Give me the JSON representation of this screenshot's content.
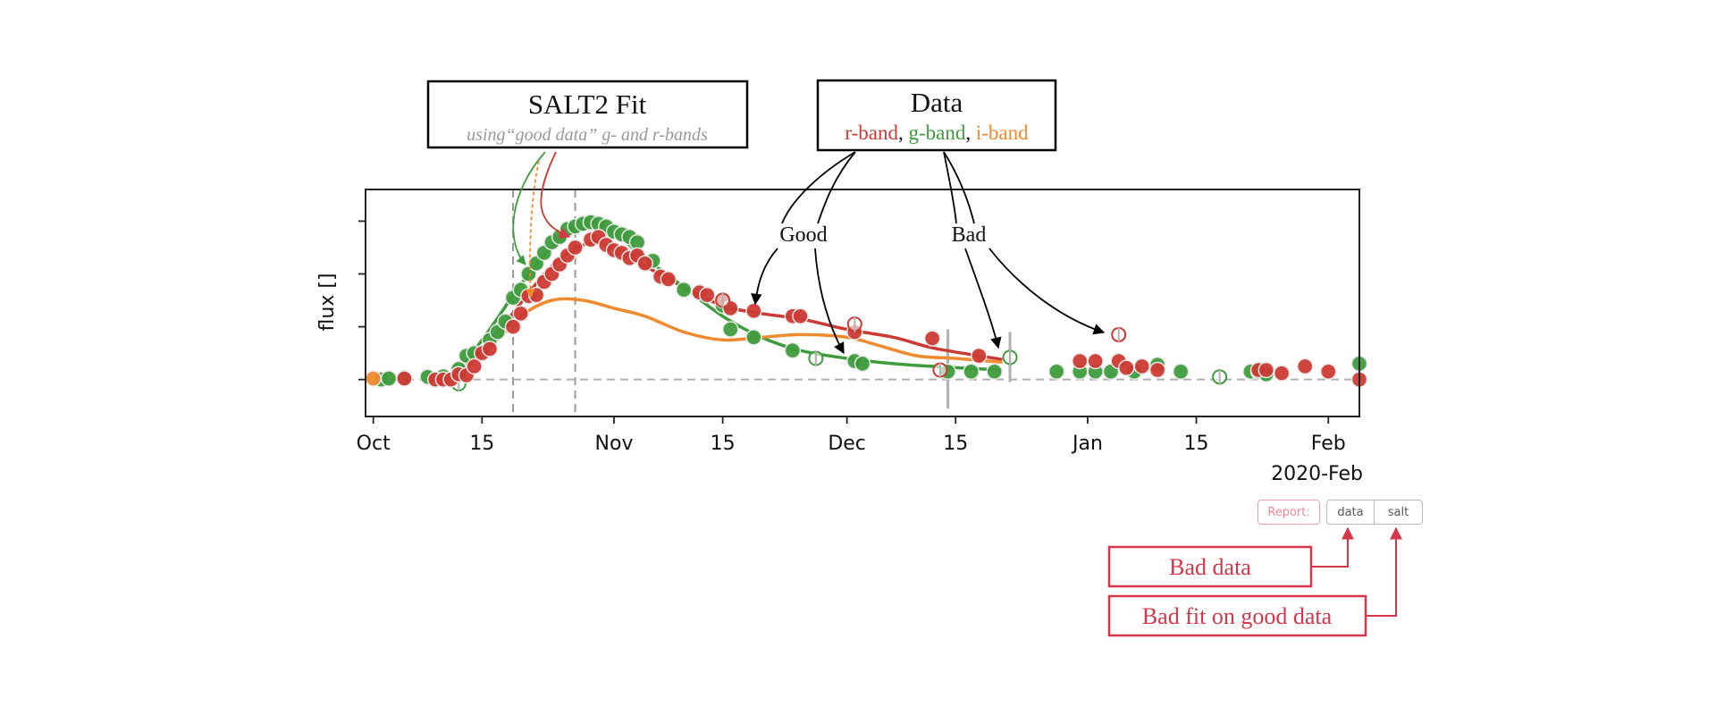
{
  "chart_data": {
    "type": "scatter",
    "xlabel": "",
    "ylabel": "flux []",
    "x_tick_labels": [
      "Oct",
      "15",
      "Nov",
      "15",
      "Dec",
      "15",
      "Jan",
      "15",
      "Feb"
    ],
    "x_tick_dates": [
      "2019-10-01",
      "2019-10-15",
      "2019-11-01",
      "2019-11-15",
      "2019-12-01",
      "2019-12-15",
      "2020-01-01",
      "2020-01-15",
      "2020-02-01"
    ],
    "x_offset_label": "2020-Feb",
    "xlim": [
      "2019-09-30",
      "2020-02-05"
    ],
    "ylim": [
      -0.7,
      3.6
    ],
    "grid": false,
    "fit_window": [
      "2019-10-19",
      "2019-10-27"
    ],
    "colors": {
      "r": "#cc3a33",
      "g": "#3e9c3c",
      "i": "#f08a2e",
      "muted": "#b0b0b0",
      "annotation": "#d6364a"
    },
    "series": [
      {
        "band": "g",
        "points": [
          [
            "2019-10-02",
            0.0
          ],
          [
            "2019-10-03",
            0.02
          ],
          [
            "2019-10-05",
            0.03
          ],
          [
            "2019-10-08",
            0.05
          ],
          [
            "2019-10-10",
            0.06
          ],
          [
            "2019-10-12",
            0.2
          ],
          [
            "2019-10-13",
            0.45
          ],
          [
            "2019-10-14",
            0.5
          ],
          [
            "2019-10-16",
            0.75
          ],
          [
            "2019-10-17",
            0.9
          ],
          [
            "2019-10-18",
            1.1
          ],
          [
            "2019-10-19",
            1.55
          ],
          [
            "2019-10-20",
            1.7
          ],
          [
            "2019-10-21",
            2.0
          ],
          [
            "2019-10-22",
            2.2
          ],
          [
            "2019-10-23",
            2.4
          ],
          [
            "2019-10-24",
            2.6
          ],
          [
            "2019-10-25",
            2.7
          ],
          [
            "2019-10-26",
            2.85
          ],
          [
            "2019-10-27",
            2.9
          ],
          [
            "2019-10-28",
            2.95
          ],
          [
            "2019-10-29",
            2.98
          ],
          [
            "2019-10-30",
            2.95
          ],
          [
            "2019-10-31",
            2.9
          ],
          [
            "2019-11-01",
            2.8
          ],
          [
            "2019-11-02",
            2.75
          ],
          [
            "2019-11-03",
            2.7
          ],
          [
            "2019-11-04",
            2.6
          ],
          [
            "2019-11-06",
            2.25
          ],
          [
            "2019-11-10",
            1.7
          ],
          [
            "2019-11-15",
            1.4
          ],
          [
            "2019-11-16",
            0.95
          ],
          [
            "2019-11-19",
            0.8
          ],
          [
            "2019-11-24",
            0.55
          ],
          [
            "2019-12-02",
            0.35
          ],
          [
            "2019-12-03",
            0.3
          ],
          [
            "2019-12-14",
            0.15
          ],
          [
            "2019-12-17",
            0.15
          ],
          [
            "2019-12-20",
            0.15
          ],
          [
            "2019-12-28",
            0.15
          ],
          [
            "2019-12-31",
            0.15
          ],
          [
            "2020-01-02",
            0.15
          ],
          [
            "2020-01-04",
            0.15
          ],
          [
            "2020-01-07",
            0.15
          ],
          [
            "2020-01-10",
            0.28
          ],
          [
            "2020-01-13",
            0.15
          ],
          [
            "2020-01-22",
            0.15
          ],
          [
            "2020-01-23",
            0.15
          ],
          [
            "2020-01-24",
            0.1
          ],
          [
            "2020-02-05",
            0.3
          ]
        ],
        "bad_points": [
          [
            "2019-11-27",
            0.4
          ],
          [
            "2019-12-22",
            0.42
          ],
          [
            "2020-01-18",
            0.05
          ],
          [
            "2019-10-12",
            -0.08
          ]
        ]
      },
      {
        "band": "r",
        "points": [
          [
            "2019-10-05",
            0.02
          ],
          [
            "2019-10-09",
            0.0
          ],
          [
            "2019-10-10",
            0.0
          ],
          [
            "2019-10-11",
            0.0
          ],
          [
            "2019-10-12",
            0.1
          ],
          [
            "2019-10-13",
            0.08
          ],
          [
            "2019-10-14",
            0.25
          ],
          [
            "2019-10-15",
            0.5
          ],
          [
            "2019-10-16",
            0.58
          ],
          [
            "2019-10-19",
            1.0
          ],
          [
            "2019-10-20",
            1.25
          ],
          [
            "2019-10-21",
            1.58
          ],
          [
            "2019-10-22",
            1.6
          ],
          [
            "2019-10-23",
            1.85
          ],
          [
            "2019-10-24",
            2.0
          ],
          [
            "2019-10-25",
            2.18
          ],
          [
            "2019-10-26",
            2.35
          ],
          [
            "2019-10-27",
            2.5
          ],
          [
            "2019-10-29",
            2.65
          ],
          [
            "2019-10-30",
            2.7
          ],
          [
            "2019-10-31",
            2.55
          ],
          [
            "2019-11-01",
            2.45
          ],
          [
            "2019-11-02",
            2.4
          ],
          [
            "2019-11-03",
            2.3
          ],
          [
            "2019-11-04",
            2.35
          ],
          [
            "2019-11-05",
            2.2
          ],
          [
            "2019-11-07",
            1.95
          ],
          [
            "2019-11-08",
            1.9
          ],
          [
            "2019-11-12",
            1.65
          ],
          [
            "2019-11-13",
            1.6
          ],
          [
            "2019-11-15",
            1.5
          ],
          [
            "2019-11-16",
            1.35
          ],
          [
            "2019-11-19",
            1.3
          ],
          [
            "2019-11-24",
            1.2
          ],
          [
            "2019-11-25",
            1.2
          ],
          [
            "2019-12-02",
            0.9
          ],
          [
            "2019-12-12",
            0.78
          ],
          [
            "2019-12-18",
            0.45
          ],
          [
            "2019-12-31",
            0.35
          ],
          [
            "2020-01-02",
            0.35
          ],
          [
            "2020-01-05",
            0.35
          ],
          [
            "2020-01-06",
            0.22
          ],
          [
            "2020-01-08",
            0.25
          ],
          [
            "2020-01-10",
            0.18
          ],
          [
            "2020-01-23",
            0.18
          ],
          [
            "2020-01-24",
            0.18
          ],
          [
            "2020-01-26",
            0.12
          ],
          [
            "2020-01-29",
            0.25
          ],
          [
            "2020-02-01",
            0.15
          ],
          [
            "2020-02-05",
            0.0
          ]
        ],
        "bad_points": [
          [
            "2019-11-15",
            1.5
          ],
          [
            "2019-12-02",
            1.05
          ],
          [
            "2019-12-13",
            0.18
          ],
          [
            "2020-01-05",
            0.85
          ]
        ]
      },
      {
        "band": "i",
        "points": [
          [
            "2019-10-01",
            0.02
          ]
        ]
      }
    ],
    "fits": [
      {
        "band": "r",
        "points": [
          [
            "2019-10-12",
            0.1
          ],
          [
            "2019-10-16",
            0.7
          ],
          [
            "2019-10-20",
            1.45
          ],
          [
            "2019-10-24",
            2.15
          ],
          [
            "2019-10-28",
            2.55
          ],
          [
            "2019-11-01",
            2.5
          ],
          [
            "2019-11-05",
            2.15
          ],
          [
            "2019-11-10",
            1.75
          ],
          [
            "2019-11-15",
            1.4
          ],
          [
            "2019-11-20",
            1.25
          ],
          [
            "2019-11-25",
            1.15
          ],
          [
            "2019-12-01",
            0.95
          ],
          [
            "2019-12-07",
            0.8
          ],
          [
            "2019-12-12",
            0.6
          ],
          [
            "2019-12-18",
            0.45
          ],
          [
            "2019-12-21",
            0.38
          ]
        ]
      },
      {
        "band": "g",
        "points": [
          [
            "2019-10-12",
            0.15
          ],
          [
            "2019-10-16",
            0.95
          ],
          [
            "2019-10-20",
            1.8
          ],
          [
            "2019-10-24",
            2.5
          ],
          [
            "2019-10-28",
            2.85
          ],
          [
            "2019-11-01",
            2.75
          ],
          [
            "2019-11-05",
            2.3
          ],
          [
            "2019-11-10",
            1.75
          ],
          [
            "2019-11-15",
            1.2
          ],
          [
            "2019-11-20",
            0.8
          ],
          [
            "2019-11-25",
            0.55
          ],
          [
            "2019-12-01",
            0.4
          ],
          [
            "2019-12-07",
            0.3
          ],
          [
            "2019-12-12",
            0.25
          ],
          [
            "2019-12-18",
            0.2
          ],
          [
            "2019-12-21",
            0.18
          ]
        ]
      },
      {
        "band": "i",
        "points": [
          [
            "2019-10-12",
            0.08
          ],
          [
            "2019-10-16",
            0.6
          ],
          [
            "2019-10-20",
            1.2
          ],
          [
            "2019-10-24",
            1.5
          ],
          [
            "2019-10-28",
            1.5
          ],
          [
            "2019-11-01",
            1.35
          ],
          [
            "2019-11-05",
            1.2
          ],
          [
            "2019-11-10",
            0.9
          ],
          [
            "2019-11-15",
            0.75
          ],
          [
            "2019-11-20",
            0.8
          ],
          [
            "2019-11-25",
            0.85
          ],
          [
            "2019-12-01",
            0.8
          ],
          [
            "2019-12-05",
            0.65
          ],
          [
            "2019-12-10",
            0.45
          ],
          [
            "2019-12-15",
            0.4
          ],
          [
            "2019-12-21",
            0.33
          ]
        ]
      }
    ],
    "error_bars": [
      {
        "date": "2019-12-14",
        "low": -0.55,
        "high": 0.95
      },
      {
        "date": "2019-12-22",
        "low": -0.05,
        "high": 0.9
      }
    ]
  },
  "callouts": {
    "salt2": {
      "title": "SALT2 Fit",
      "subtitle": "using“good data” g- and r-bands"
    },
    "data": {
      "title": "Data",
      "r_band": "r-band",
      "comma1": ",",
      "g_band": "g-band",
      "comma2": ",",
      "i_band": "i-band"
    },
    "good_label": "Good",
    "bad_label": "Bad",
    "bad_data_label": "Bad data",
    "bad_fit_label": "Bad fit on good data"
  },
  "report": {
    "label": "Report:",
    "data_button": "data",
    "salt_button": "salt"
  }
}
